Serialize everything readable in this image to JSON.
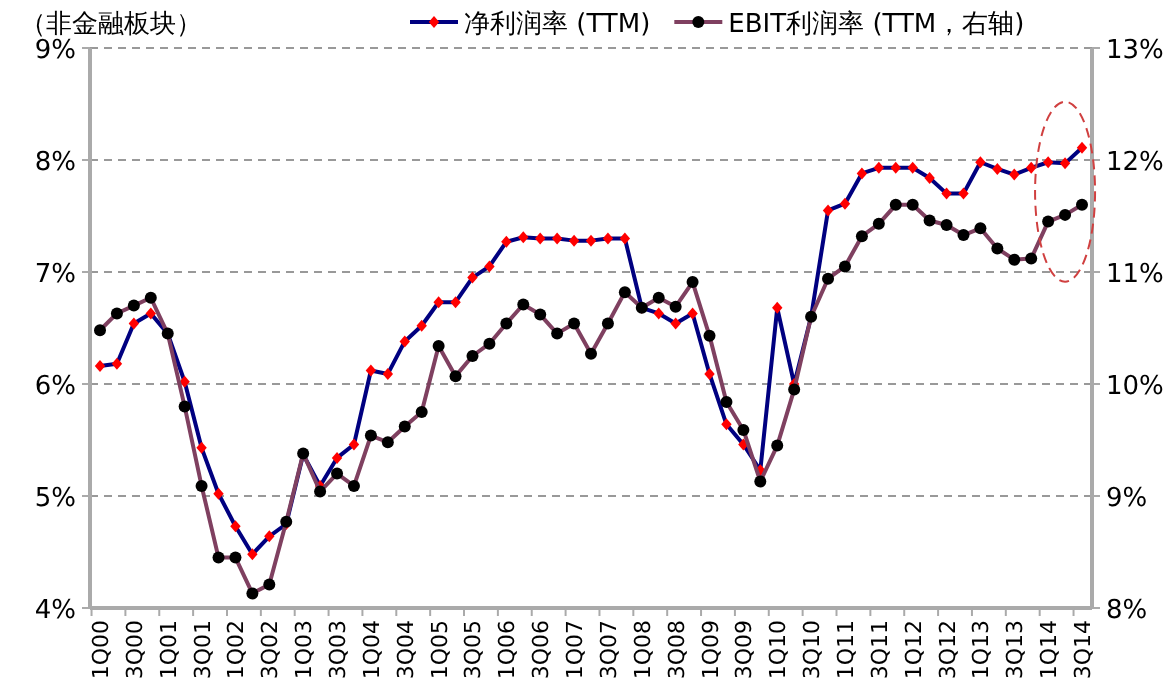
{
  "chart_data": {
    "type": "line",
    "title": "（非金融板块）",
    "categories": [
      "1Q00",
      null,
      "3Q00",
      null,
      "1Q01",
      null,
      "3Q01",
      null,
      "1Q02",
      null,
      "3Q02",
      null,
      "1Q03",
      null,
      "3Q03",
      null,
      "1Q04",
      null,
      "3Q04",
      null,
      "1Q05",
      null,
      "3Q05",
      null,
      "1Q06",
      null,
      "3Q06",
      null,
      "1Q07",
      null,
      "3Q07",
      null,
      "1Q08",
      null,
      "3Q08",
      null,
      "1Q09",
      null,
      "3Q09",
      null,
      "1Q10",
      null,
      "3Q10",
      null,
      "1Q11",
      null,
      "3Q11",
      null,
      "1Q12",
      null,
      "3Q12",
      null,
      "1Q13",
      null,
      "3Q13",
      null,
      "1Q14",
      null,
      "3Q14"
    ],
    "series": [
      {
        "name": "净利润率 (TTM)",
        "color": "#000080",
        "marker": "diamond",
        "colors": [
          "#ff0000",
          "#ff0000",
          "#ff0000",
          "#ff0000",
          "#ff0000",
          "#ff0000",
          "#ff0000",
          "#ff0000",
          "#ff0000",
          "#ff0000",
          "#ff0000",
          "#ff0000",
          "#ff0000",
          "#ff0000",
          "#ff0000",
          "#ff0000",
          "#ff0000",
          "#ff0000",
          "#ff0000",
          "#ff0000",
          "#ff0000",
          "#ff0000",
          "#ff0000",
          "#ff0000",
          "#ff0000",
          "#ff0000",
          "#ff0000",
          "#ff0000",
          "#ff0000",
          "#ff0000",
          "#ff0000",
          "#ff0000",
          "#ff0000",
          "#ff0000",
          "#ff0000",
          "#ff0000",
          "#ff0000",
          "#ff0000",
          "#ff0000",
          "#ff0000",
          "#ff0000",
          "#ff0000",
          "#ff0000",
          "#ff0000",
          "#ff0000",
          "#ff0000",
          "#ff0000",
          "#ff0000",
          "#ff0000",
          "#ff0000",
          "#ff0000",
          "#ff0000",
          "#ff0000",
          "#ff0000",
          "#ff0000",
          "#ff0000",
          "#ff0000",
          "#ff0000",
          "#ff0000"
        ],
        "values": [
          6.16,
          6.18,
          6.54,
          6.63,
          6.45,
          6.02,
          5.43,
          5.02,
          4.73,
          4.48,
          4.64,
          4.75,
          5.37,
          5.09,
          5.34,
          5.46,
          6.12,
          6.09,
          6.38,
          6.52,
          6.73,
          6.73,
          6.95,
          7.05,
          7.27,
          7.31,
          7.3,
          7.3,
          7.28,
          7.28,
          7.3,
          7.3,
          6.68,
          6.63,
          6.54,
          6.63,
          6.09,
          5.64,
          5.46,
          5.23,
          6.68,
          6.0,
          6.6,
          7.55,
          7.61,
          7.88,
          7.93,
          7.93,
          7.93,
          7.84,
          7.7,
          7.7,
          7.98,
          7.92,
          7.87,
          7.93,
          7.98,
          7.97,
          8.11
        ]
      },
      {
        "name": "EBIT利润率 (TTM，右轴)",
        "color": "#7f4060",
        "marker": "circle",
        "axis": "y2",
        "colors": [
          "#000000",
          "#000000",
          "#000000",
          "#000000",
          "#000000",
          "#000000",
          "#000000",
          "#000000",
          "#000000",
          "#000000",
          "#000000",
          "#000000",
          "#000000",
          "#000000",
          "#000000",
          "#000000",
          "#000000",
          "#000000",
          "#000000",
          "#000000",
          "#000000",
          "#000000",
          "#000000",
          "#000000",
          "#000000",
          "#000000",
          "#000000",
          "#000000",
          "#000000",
          "#000000",
          "#000000",
          "#000000",
          "#000000",
          "#000000",
          "#000000",
          "#000000",
          "#000000",
          "#000000",
          "#000000",
          "#000000",
          "#000000",
          "#000000",
          "#000000",
          "#000000",
          "#000000",
          "#000000",
          "#000000",
          "#000000",
          "#000000",
          "#000000",
          "#000000",
          "#000000",
          "#000000",
          "#000000",
          "#000000",
          "#000000",
          "#000000",
          "#000000",
          "#000000"
        ],
        "values": [
          10.48,
          10.63,
          10.7,
          10.77,
          10.45,
          9.8,
          9.09,
          8.45,
          8.45,
          8.13,
          8.21,
          8.77,
          9.38,
          9.04,
          9.2,
          9.09,
          9.54,
          9.48,
          9.62,
          9.75,
          10.34,
          10.07,
          10.25,
          10.36,
          10.54,
          10.71,
          10.62,
          10.45,
          10.54,
          10.27,
          10.54,
          10.82,
          10.68,
          10.77,
          10.69,
          10.91,
          10.43,
          9.84,
          9.59,
          9.13,
          9.45,
          9.95,
          10.6,
          10.94,
          11.05,
          11.32,
          11.43,
          11.6,
          11.6,
          11.46,
          11.42,
          11.33,
          11.39,
          11.21,
          11.11,
          11.12,
          11.45,
          11.51,
          11.6
        ]
      }
    ],
    "ylim": [
      4,
      9
    ],
    "yticks": [
      {
        "value": 4,
        "label": "4%"
      },
      {
        "value": 5,
        "label": "5%"
      },
      {
        "value": 6,
        "label": "6%"
      },
      {
        "value": 7,
        "label": "7%"
      },
      {
        "value": 8,
        "label": "8%"
      },
      {
        "value": 9,
        "label": "9%"
      }
    ],
    "y2lim": [
      8,
      13
    ],
    "y2ticks": [
      {
        "value": 8,
        "label": "8%"
      },
      {
        "value": 9,
        "label": "9%"
      },
      {
        "value": 10,
        "label": "10%"
      },
      {
        "value": 11,
        "label": "11%"
      },
      {
        "value": 12,
        "label": "12%"
      },
      {
        "value": 13,
        "label": "13%"
      }
    ],
    "grid": "y",
    "legend": "top",
    "line_style": "solid"
  }
}
